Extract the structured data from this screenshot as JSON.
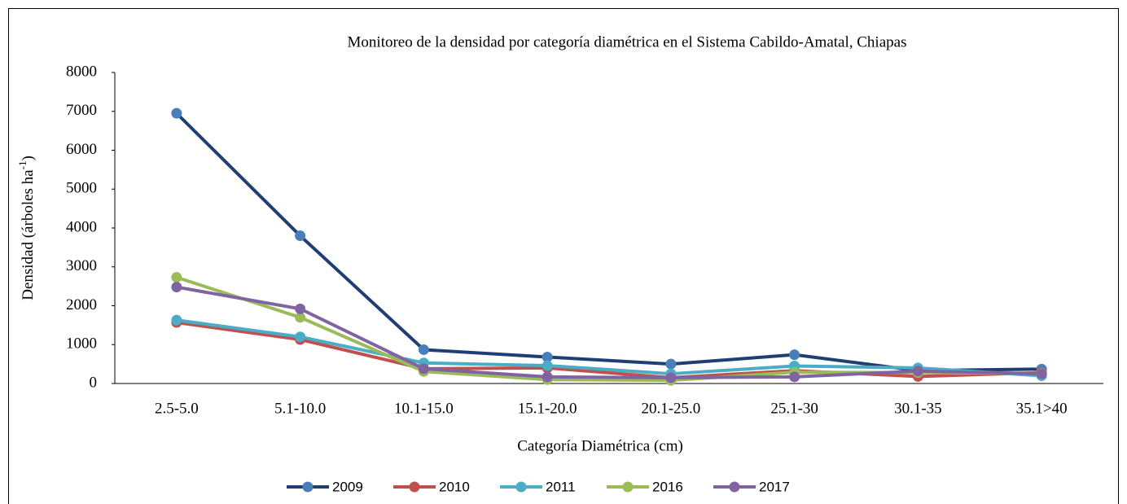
{
  "chart_data": {
    "type": "line",
    "title": "Monitoreo de la densidad por categoría diamétrica en el  Sistema Cabildo-Amatal, Chiapas",
    "y_label": [
      "Densidad (árboles  ha",
      "-1",
      ")"
    ],
    "x_label": "Categoría Diamétrica (cm)",
    "categories": [
      "2.5-5.0",
      "5.1-10.0",
      "10.1-15.0",
      "15.1-20.0",
      "20.1-25.0",
      "25.1-30",
      "30.1-35",
      "35.1>40"
    ],
    "series": [
      {
        "name": "2009",
        "color": "#1f3f74",
        "marker_color": "#4a7ebb",
        "values": [
          6950,
          3800,
          870,
          680,
          500,
          740,
          330,
          370
        ]
      },
      {
        "name": "2010",
        "color": "#c0504d",
        "marker_color": "#c0504d",
        "values": [
          1570,
          1130,
          380,
          400,
          150,
          330,
          180,
          280
        ]
      },
      {
        "name": "2011",
        "color": "#4bacc6",
        "marker_color": "#4bacc6",
        "values": [
          1630,
          1200,
          530,
          460,
          250,
          450,
          400,
          200
        ]
      },
      {
        "name": "2016",
        "color": "#9bbb59",
        "marker_color": "#9bbb59",
        "values": [
          2730,
          1700,
          310,
          100,
          80,
          290,
          280,
          260
        ]
      },
      {
        "name": "2017",
        "color": "#8064a2",
        "marker_color": "#8064a2",
        "values": [
          2480,
          1920,
          380,
          170,
          150,
          170,
          320,
          250
        ]
      }
    ],
    "ylim": [
      0,
      8000
    ],
    "yticks": [
      0,
      1000,
      2000,
      3000,
      4000,
      5000,
      6000,
      7000,
      8000
    ],
    "grid": false,
    "legend": "bottom"
  }
}
